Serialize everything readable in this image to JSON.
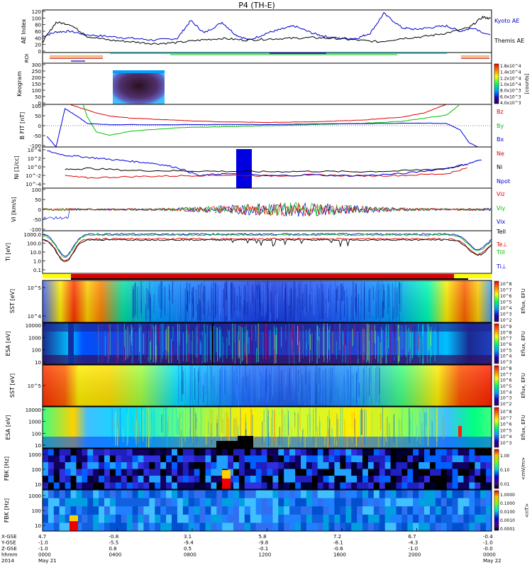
{
  "title": "P4 (TH-E)",
  "colors": {
    "kyoto": "#0000cc",
    "themis": "#000000",
    "red": "#e00000",
    "green": "#00c000",
    "blue": "#0000e0",
    "cyan": "#00c8c8",
    "orange": "#e08000",
    "yellow": "#ffff00"
  },
  "chart_data": [
    {
      "type": "line",
      "panel": "ae",
      "ylabel": "AE Index",
      "ylim": [
        0,
        120
      ],
      "yticks": [
        "0",
        "20",
        "40",
        "60",
        "80",
        "100",
        "120"
      ],
      "series": [
        {
          "name": "Kyoto AE",
          "color": "#0000cc",
          "x": [
            0,
            0.03,
            0.06,
            0.1,
            0.15,
            0.2,
            0.25,
            0.3,
            0.33,
            0.36,
            0.4,
            0.43,
            0.46,
            0.5,
            0.53,
            0.56,
            0.6,
            0.63,
            0.66,
            0.7,
            0.73,
            0.76,
            0.8,
            0.83,
            0.86,
            0.9,
            0.93,
            0.96,
            1.0
          ],
          "y": [
            45,
            58,
            60,
            50,
            45,
            40,
            35,
            40,
            90,
            55,
            85,
            50,
            35,
            55,
            65,
            75,
            55,
            45,
            40,
            40,
            55,
            110,
            70,
            65,
            70,
            75,
            60,
            70,
            45
          ]
        },
        {
          "name": "Themis AE",
          "color": "#000000",
          "x": [
            0,
            0.03,
            0.06,
            0.1,
            0.15,
            0.2,
            0.25,
            0.3,
            0.35,
            0.4,
            0.45,
            0.5,
            0.55,
            0.6,
            0.65,
            0.7,
            0.75,
            0.8,
            0.85,
            0.9,
            0.95,
            0.98,
            1.0
          ],
          "y": [
            30,
            85,
            80,
            45,
            35,
            30,
            25,
            28,
            35,
            40,
            35,
            38,
            40,
            42,
            40,
            35,
            30,
            40,
            45,
            55,
            70,
            100,
            95
          ]
        }
      ]
    },
    {
      "type": "area",
      "panel": "roi",
      "ylabel": "ROI"
    },
    {
      "type": "heatmap",
      "panel": "keogram",
      "ylabel": "Keogram",
      "ylim": [
        0,
        300
      ],
      "yticks": [
        "0",
        "50",
        "100",
        "150",
        "200",
        "250",
        "300"
      ],
      "colorbar": {
        "label": "[counts]",
        "ticks": [
          "1.8x10^4",
          "1.4x10^4",
          "1.2x10^4",
          "1.0x10^4",
          "8.0x10^3",
          "6.0x10^3",
          "4.0x10^3"
        ]
      }
    },
    {
      "type": "line",
      "panel": "bfield",
      "ylabel": "B FIT [nT]",
      "ylim": [
        -100,
        100
      ],
      "yticks": [
        "-100",
        "-50",
        "0",
        "50",
        "100"
      ],
      "series": [
        {
          "name": "Bz",
          "color": "#e00000",
          "x": [
            0.06,
            0.09,
            0.12,
            0.15,
            0.2,
            0.3,
            0.4,
            0.5,
            0.6,
            0.7,
            0.8,
            0.85,
            0.88,
            0.9
          ],
          "y": [
            100,
            80,
            60,
            45,
            35,
            25,
            18,
            15,
            18,
            25,
            40,
            60,
            85,
            100
          ]
        },
        {
          "name": "By",
          "color": "#00c000",
          "x": [
            0.09,
            0.1,
            0.12,
            0.15,
            0.2,
            0.3,
            0.4,
            0.5,
            0.6,
            0.7,
            0.8,
            0.85,
            0.9,
            0.93
          ],
          "y": [
            100,
            40,
            -30,
            -45,
            -25,
            -10,
            -5,
            0,
            5,
            10,
            20,
            35,
            50,
            100
          ]
        },
        {
          "name": "Bx",
          "color": "#0000e0",
          "x": [
            0.01,
            0.03,
            0.05,
            0.08,
            0.1,
            0.15,
            0.3,
            0.5,
            0.7,
            0.85,
            0.9,
            0.93,
            0.95,
            0.97
          ],
          "y": [
            -50,
            -100,
            80,
            40,
            10,
            5,
            5,
            5,
            10,
            12,
            10,
            -20,
            -80,
            -100
          ]
        }
      ]
    },
    {
      "type": "line",
      "panel": "density",
      "ylabel": "Ni [1/cc]",
      "yticks": [
        "10^-4",
        "10^-2",
        "10^0",
        "10^2",
        "10^4"
      ],
      "series": [
        {
          "name": "Ne",
          "color": "#e00000",
          "x": [
            0.05,
            0.1,
            0.2,
            0.3,
            0.4,
            0.5,
            0.6,
            0.7,
            0.8,
            0.9,
            0.95
          ],
          "y": [
            -1,
            -1.5,
            -1.2,
            -1,
            -0.8,
            -1,
            -0.8,
            -1,
            -0.9,
            -0.5,
            1
          ]
        },
        {
          "name": "Ni",
          "color": "#000000",
          "x": [
            0.05,
            0.1,
            0.2,
            0.3,
            0.4,
            0.5,
            0.6,
            0.7,
            0.8,
            0.9,
            0.95
          ],
          "y": [
            0.5,
            0.8,
            0.3,
            0.2,
            0.1,
            0,
            0.1,
            0,
            0.2,
            0.8,
            1.8
          ]
        },
        {
          "name": "Npot",
          "color": "#0000e0",
          "x": [
            0.01,
            0.05,
            0.1,
            0.15,
            0.2,
            0.25,
            0.3,
            0.35,
            0.4,
            0.5,
            0.6,
            0.7,
            0.8,
            0.9,
            0.95,
            0.98
          ],
          "y": [
            5,
            4,
            3.5,
            3,
            2.5,
            2,
            1,
            -1,
            -0.5,
            -1,
            -0.8,
            -1,
            -0.5,
            0.8,
            2,
            3
          ]
        }
      ]
    },
    {
      "type": "line",
      "panel": "velocity",
      "ylabel": "Vi [km/s]",
      "ylim": [
        -100,
        100
      ],
      "yticks": [
        "-100",
        "-50",
        "0",
        "50",
        "100"
      ],
      "series": [
        {
          "name": "Viz",
          "color": "#e00000"
        },
        {
          "name": "Viy",
          "color": "#00c000"
        },
        {
          "name": "Vix",
          "color": "#0000e0"
        }
      ]
    },
    {
      "type": "line",
      "panel": "temperature",
      "ylabel": "Ti [eV]",
      "yticks": [
        "0.1",
        "1.0",
        "10.0",
        "100.0",
        "1000.0"
      ],
      "series": [
        {
          "name": "TeII",
          "color": "#000000"
        },
        {
          "name": "Te⊥",
          "color": "#e00000"
        },
        {
          "name": "TiII",
          "color": "#00c000"
        },
        {
          "name": "Ti⊥",
          "color": "#0000e0"
        }
      ]
    },
    {
      "type": "heatmap",
      "panel": "sst_e",
      "ylabel": "SST [eV]",
      "yticks": [
        "10^4",
        "10^5"
      ],
      "colorbar": {
        "label": "Eflux, EFU",
        "ticks": [
          "10^8",
          "10^7",
          "10^6",
          "10^5",
          "10^4",
          "10^3",
          "10^2"
        ]
      }
    },
    {
      "type": "heatmap",
      "panel": "esa_e",
      "ylabel": "ESA [eV]",
      "yticks": [
        "10",
        "100",
        "1000",
        "10000"
      ],
      "colorbar": {
        "label": "Eflux, EFU",
        "ticks": [
          "10^9",
          "10^8",
          "10^7",
          "10^6",
          "10^5",
          "10^4",
          "10^3"
        ]
      }
    },
    {
      "type": "heatmap",
      "panel": "sst_i",
      "ylabel": "SST [eV]",
      "yticks": [
        "10^5"
      ],
      "colorbar": {
        "label": "Eflux, EFU",
        "ticks": [
          "10^8",
          "10^7",
          "10^6",
          "10^5",
          "10^4",
          "10^3",
          "10^2"
        ]
      }
    },
    {
      "type": "heatmap",
      "panel": "esa_i",
      "ylabel": "ESA [eV]",
      "yticks": [
        "10",
        "100",
        "1000",
        "10000"
      ],
      "colorbar": {
        "label": "Eflux, EFU",
        "ticks": [
          "10^8",
          "10^7",
          "10^6",
          "10^5",
          "10^4",
          "10^3"
        ]
      }
    },
    {
      "type": "heatmap",
      "panel": "fbk_e",
      "ylabel": "FBK [Hz]",
      "yticks": [
        "10",
        "100",
        "1000"
      ],
      "colorbar": {
        "label": "<mV/m>",
        "ticks": [
          "1.00",
          "0.10",
          "0.01"
        ]
      }
    },
    {
      "type": "heatmap",
      "panel": "fbk_b",
      "ylabel": "FBK [Hz]",
      "yticks": [
        "10",
        "100",
        "1000"
      ],
      "colorbar": {
        "label": "<nT>",
        "ticks": [
          "1.0000",
          "0.1000",
          "0.0100",
          "0.0010",
          "0.0001"
        ]
      }
    }
  ],
  "legend": {
    "ae": [
      "Kyoto AE",
      "Themis AE"
    ],
    "bfield": [
      "Bz",
      "By",
      "Bx"
    ],
    "density": [
      "Ne",
      "Ni",
      "Npot"
    ],
    "velocity": [
      "Viz",
      "Viy",
      "Vix"
    ],
    "temperature": [
      "TeII",
      "Te⊥",
      "TiII",
      "Ti⊥"
    ]
  },
  "xaxis": {
    "row_labels": [
      "X-GSE",
      "Y-GSE",
      "Z-GSE",
      "hhmm",
      "2014"
    ],
    "columns": [
      {
        "vals": [
          "4.7",
          "-1.0",
          "-1.0",
          "0000",
          "May 21"
        ]
      },
      {
        "vals": [
          "-0.8",
          "-5.5",
          "0.8",
          "0400",
          ""
        ]
      },
      {
        "vals": [
          "3.1",
          "-9.4",
          "0.5",
          "0800",
          ""
        ]
      },
      {
        "vals": [
          "5.8",
          "-9.8",
          "-0.1",
          "1200",
          ""
        ]
      },
      {
        "vals": [
          "7.2",
          "-8.1",
          "-0.6",
          "1600",
          ""
        ]
      },
      {
        "vals": [
          "6.7",
          "-4.3",
          "-1.0",
          "2000",
          ""
        ]
      },
      {
        "vals": [
          "-0.4",
          "-1.0",
          "-0.0",
          "0000",
          "May 22"
        ]
      }
    ]
  }
}
